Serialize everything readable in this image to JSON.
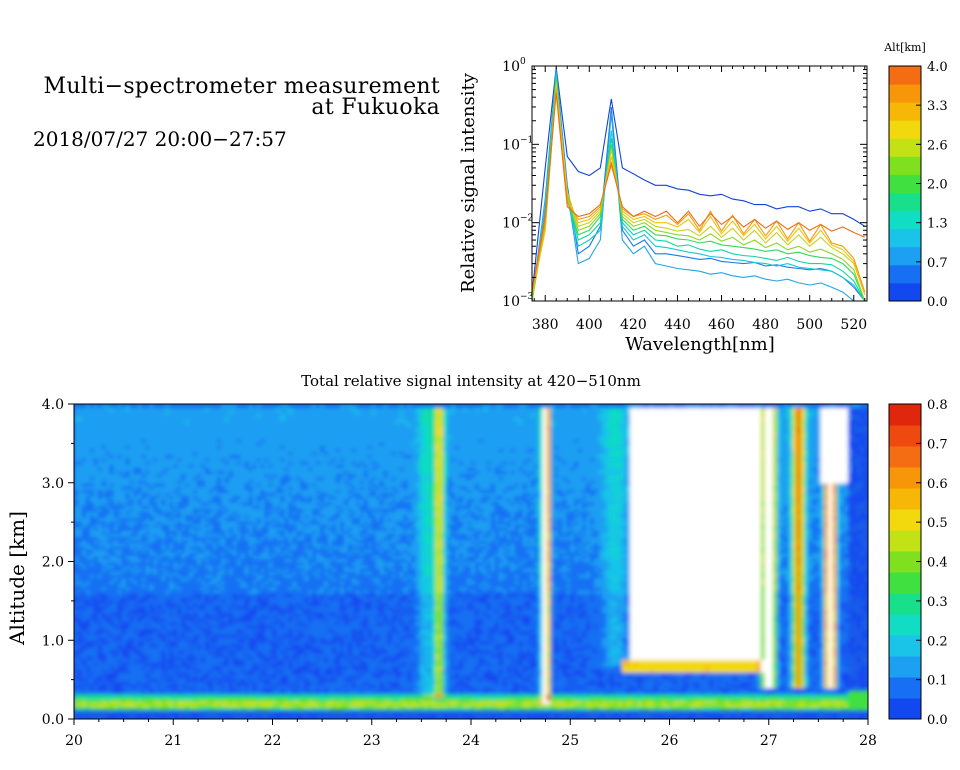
{
  "header": {
    "title_line1": "Multi−spectrometer measurement",
    "title_line2": "at Fukuoka",
    "date_line": "2018/07/27 20:00−27:57"
  },
  "chart_data": [
    {
      "type": "line",
      "title": "",
      "xlabel": "Wavelength[nm]",
      "ylabel": "Relative signal intensity",
      "yscale": "log",
      "xlim": [
        374,
        526
      ],
      "ylim": [
        0.001,
        1
      ],
      "xticks": [
        380,
        400,
        420,
        440,
        460,
        480,
        500,
        520
      ],
      "yticks": [
        {
          "value": 1,
          "mantissa": "10",
          "exp": "0"
        },
        {
          "value": 0.1,
          "mantissa": "10",
          "exp": "−1"
        },
        {
          "value": 0.01,
          "mantissa": "10",
          "exp": "−2"
        },
        {
          "value": 0.001,
          "mantissa": "10",
          "exp": "−3"
        }
      ],
      "colorbar": {
        "label": "Alt[km]",
        "ticks": [
          "0.0",
          "0.7",
          "1.3",
          "2.0",
          "2.6",
          "3.3",
          "4.0"
        ],
        "colors": [
          "#1248f0",
          "#1770f3",
          "#1d9ff2",
          "#19c4e8",
          "#11dcc4",
          "#18e08a",
          "#3fe040",
          "#7fe020",
          "#c2e215",
          "#f2d90e",
          "#f7b707",
          "#f79608",
          "#f46d12"
        ]
      },
      "x": [
        374,
        380,
        385,
        390,
        395,
        400,
        405,
        410,
        415,
        420,
        425,
        430,
        435,
        440,
        445,
        450,
        455,
        460,
        465,
        470,
        475,
        480,
        485,
        490,
        495,
        500,
        505,
        510,
        515,
        520,
        525
      ],
      "series": [
        {
          "altitude": 0.1,
          "color": "#1045d8",
          "values": [
            0.0012,
            0.05,
            0.95,
            0.07,
            0.045,
            0.04,
            0.05,
            0.38,
            0.05,
            0.042,
            0.035,
            0.03,
            0.03,
            0.027,
            0.026,
            0.023,
            0.022,
            0.023,
            0.02,
            0.019,
            0.017,
            0.017,
            0.015,
            0.016,
            0.016,
            0.014,
            0.015,
            0.013,
            0.013,
            0.011,
            0.009
          ]
        },
        {
          "altitude": 0.4,
          "color": "#1a7ae8",
          "values": [
            0.001,
            0.02,
            0.9,
            0.03,
            0.004,
            0.005,
            0.009,
            0.3,
            0.008,
            0.005,
            0.006,
            0.004,
            0.004,
            0.0038,
            0.0036,
            0.0034,
            0.0035,
            0.0032,
            0.0031,
            0.003,
            0.0031,
            0.0028,
            0.0029,
            0.0027,
            0.0026,
            0.0025,
            0.0026,
            0.0024,
            0.002,
            0.0015,
            0.001
          ]
        },
        {
          "altitude": 0.8,
          "color": "#23a6e2",
          "values": [
            0.001,
            0.015,
            0.85,
            0.025,
            0.003,
            0.0035,
            0.006,
            0.25,
            0.006,
            0.004,
            0.005,
            0.003,
            0.0028,
            0.0026,
            0.0025,
            0.0024,
            0.0022,
            0.0023,
            0.0021,
            0.002,
            0.0021,
            0.0019,
            0.0018,
            0.0019,
            0.0017,
            0.0016,
            0.0017,
            0.0015,
            0.0013,
            0.001,
            0.001
          ]
        },
        {
          "altitude": 1.2,
          "color": "#16c8d8",
          "values": [
            0.001,
            0.018,
            0.8,
            0.02,
            0.005,
            0.006,
            0.008,
            0.15,
            0.009,
            0.006,
            0.007,
            0.005,
            0.0048,
            0.0045,
            0.0042,
            0.004,
            0.0037,
            0.0036,
            0.0034,
            0.0033,
            0.0031,
            0.003,
            0.0028,
            0.003,
            0.0027,
            0.0026,
            0.0025,
            0.0024,
            0.002,
            0.0016,
            0.001
          ]
        },
        {
          "altitude": 1.6,
          "color": "#12d6a8",
          "values": [
            0.001,
            0.012,
            0.75,
            0.022,
            0.006,
            0.007,
            0.01,
            0.12,
            0.01,
            0.007,
            0.008,
            0.006,
            0.0058,
            0.005,
            0.0052,
            0.0046,
            0.0043,
            0.0045,
            0.004,
            0.0038,
            0.0037,
            0.0035,
            0.0033,
            0.0036,
            0.0032,
            0.003,
            0.003,
            0.0029,
            0.0024,
            0.0018,
            0.001
          ]
        },
        {
          "altitude": 2.0,
          "color": "#36d858",
          "values": [
            0.001,
            0.01,
            0.7,
            0.02,
            0.007,
            0.008,
            0.012,
            0.1,
            0.011,
            0.008,
            0.009,
            0.007,
            0.0068,
            0.0062,
            0.006,
            0.0055,
            0.0058,
            0.0052,
            0.005,
            0.0048,
            0.0046,
            0.0043,
            0.0045,
            0.004,
            0.0042,
            0.0038,
            0.0036,
            0.0035,
            0.003,
            0.0022,
            0.001
          ]
        },
        {
          "altitude": 2.4,
          "color": "#8ad622",
          "values": [
            0.001,
            0.009,
            0.65,
            0.022,
            0.008,
            0.009,
            0.013,
            0.09,
            0.012,
            0.009,
            0.01,
            0.008,
            0.0075,
            0.007,
            0.0068,
            0.006,
            0.0072,
            0.0058,
            0.0065,
            0.0052,
            0.006,
            0.0048,
            0.0055,
            0.0045,
            0.005,
            0.0042,
            0.0046,
            0.004,
            0.0034,
            0.0025,
            0.001
          ]
        },
        {
          "altitude": 2.8,
          "color": "#c8d218",
          "values": [
            0.0012,
            0.008,
            0.6,
            0.025,
            0.009,
            0.01,
            0.014,
            0.085,
            0.013,
            0.01,
            0.011,
            0.009,
            0.0085,
            0.0078,
            0.0082,
            0.0068,
            0.009,
            0.0065,
            0.0085,
            0.006,
            0.008,
            0.0055,
            0.0075,
            0.0052,
            0.007,
            0.005,
            0.0065,
            0.0048,
            0.004,
            0.003,
            0.0012
          ]
        },
        {
          "altitude": 3.2,
          "color": "#f0c20c",
          "values": [
            0.0012,
            0.008,
            0.55,
            0.02,
            0.01,
            0.011,
            0.015,
            0.07,
            0.014,
            0.011,
            0.012,
            0.01,
            0.01,
            0.0088,
            0.011,
            0.0075,
            0.012,
            0.0072,
            0.0105,
            0.0068,
            0.0095,
            0.0062,
            0.009,
            0.0058,
            0.0085,
            0.0055,
            0.008,
            0.0052,
            0.0045,
            0.0032,
            0.0012
          ]
        },
        {
          "altitude": 3.6,
          "color": "#f59a0a",
          "values": [
            0.0013,
            0.01,
            0.5,
            0.018,
            0.011,
            0.012,
            0.016,
            0.06,
            0.015,
            0.012,
            0.013,
            0.011,
            0.0125,
            0.0095,
            0.013,
            0.008,
            0.014,
            0.0078,
            0.0125,
            0.0072,
            0.011,
            0.0068,
            0.0105,
            0.0062,
            0.01,
            0.0058,
            0.0095,
            0.0055,
            0.005,
            0.0035,
            0.0013
          ]
        },
        {
          "altitude": 4.0,
          "color": "#e8701a",
          "values": [
            0.0013,
            0.012,
            0.45,
            0.016,
            0.012,
            0.013,
            0.017,
            0.055,
            0.016,
            0.012,
            0.014,
            0.012,
            0.014,
            0.01,
            0.014,
            0.009,
            0.013,
            0.0095,
            0.012,
            0.0088,
            0.011,
            0.0085,
            0.0105,
            0.0082,
            0.01,
            0.008,
            0.0095,
            0.0078,
            0.0088,
            0.0075,
            0.0065
          ]
        }
      ]
    },
    {
      "type": "heatmap",
      "title": "Total relative signal intensity at 420−510nm",
      "xlabel": "",
      "ylabel": "Altitude [km]",
      "xlim": [
        20,
        28
      ],
      "ylim": [
        0,
        4
      ],
      "xticks": [
        "20",
        "21",
        "22",
        "23",
        "24",
        "25",
        "26",
        "27",
        "28"
      ],
      "yticks": [
        "0.0",
        "1.0",
        "2.0",
        "3.0",
        "4.0"
      ],
      "colorbar": {
        "ticks": [
          "0.0",
          "0.1",
          "0.2",
          "0.3",
          "0.4",
          "0.5",
          "0.6",
          "0.7",
          "0.8"
        ],
        "colors": [
          "#1248f0",
          "#1770f3",
          "#1d9ff2",
          "#19c4e8",
          "#11dcc4",
          "#18e08a",
          "#3fe040",
          "#7fe020",
          "#c2e215",
          "#f2d90e",
          "#f7b707",
          "#f79608",
          "#f46d12",
          "#ee4a10",
          "#e0260c"
        ]
      },
      "description": "Altitude-time cross-section. Mostly low values (0.05-0.2) with a bright 0.3-0.8 layer near 0.2 km, a strong narrow column near 23.7, a very strong column near 24.75 and saturated (>0.8, blank) region from 25.6 to 26.9 above 0.8 km, plus columns near 27.2-27.7.",
      "x": [
        20,
        20.5,
        21,
        21.5,
        22,
        22.5,
        23,
        23.5,
        23.7,
        24,
        24.5,
        24.75,
        25,
        25.3,
        25.55,
        26,
        26.5,
        26.9,
        27.2,
        27.5,
        27.75
      ],
      "features": [
        {
          "name": "surface layer",
          "altitude_range": [
            0.1,
            0.3
          ],
          "value": 0.4
        },
        {
          "name": "column",
          "time": 23.7,
          "altitude_range": [
            0.3,
            4.0
          ],
          "value": 0.45
        },
        {
          "name": "column",
          "time": 24.75,
          "altitude_range": [
            0.3,
            4.0
          ],
          "value": 0.8
        },
        {
          "name": "saturated region",
          "time_range": [
            25.6,
            26.9
          ],
          "altitude_range": [
            0.8,
            4.0
          ],
          "value": 0.8
        },
        {
          "name": "column",
          "time": 27.0,
          "altitude_range": [
            0.5,
            4.0
          ],
          "value": 0.8
        },
        {
          "name": "column",
          "time": 27.3,
          "altitude_range": [
            0.5,
            4.0
          ],
          "value": 0.6
        },
        {
          "name": "column",
          "time": 27.6,
          "altitude_range": [
            0.5,
            4.0
          ],
          "value": 0.8
        }
      ]
    }
  ]
}
